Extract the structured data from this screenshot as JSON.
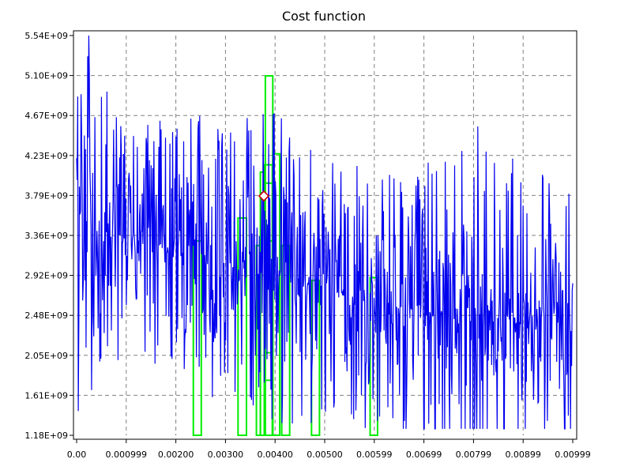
{
  "chart_data": {
    "type": "line",
    "title": "Cost function",
    "xlabel": "",
    "ylabel": "",
    "xlim": [
      0.0,
      0.00999
    ],
    "ylim": [
      1180000000.0,
      5540000000.0
    ],
    "grid": true,
    "y_tick_labels": [
      "1.18E+09",
      "1.61E+09",
      "2.05E+09",
      "2.48E+09",
      "2.92E+09",
      "3.36E+09",
      "3.79E+09",
      "4.23E+09",
      "4.67E+09",
      "5.10E+09",
      "5.54E+09"
    ],
    "x_tick_labels": [
      "0.00",
      "0.000999",
      "0.00200",
      "0.00300",
      "0.00400",
      "0.00500",
      "0.00599",
      "0.00699",
      "0.00799",
      "0.00899",
      "0.00999"
    ],
    "series": [
      {
        "color": "#0000ee",
        "description": "noisy cost trace, ~1000 samples, mean decreasing from ~3.4E+09 to ~2.5E+09",
        "x": [
          0.0,
          0.001,
          0.002,
          0.003,
          0.004,
          0.005,
          0.006,
          0.007,
          0.008,
          0.009,
          0.00999
        ],
        "y_mean": [
          3450000000.0,
          3350000000.0,
          3200000000.0,
          3100000000.0,
          3000000000.0,
          2800000000.0,
          2600000000.0,
          2500000000.0,
          2500000000.0,
          2450000000.0,
          2500000000.0
        ],
        "y_peak": [
          5540000000.0,
          4600000000.0,
          4700000000.0,
          4650000000.0,
          4700000000.0,
          4300000000.0,
          4100000000.0,
          4200000000.0,
          4600000000.0,
          4100000000.0,
          3900000000.0
        ]
      },
      {
        "color": "#00ee00",
        "description": "histogram-style green bars",
        "bars": [
          {
            "x0": 0.00235,
            "x1": 0.00251,
            "y": 3300000000.0
          },
          {
            "x0": 0.00325,
            "x1": 0.00342,
            "y": 3550000000.0
          },
          {
            "x0": 0.00362,
            "x1": 0.0037,
            "y": 3250000000.0
          },
          {
            "x0": 0.0037,
            "x1": 0.00378,
            "y": 4050000000.0
          },
          {
            "x0": 0.00378,
            "x1": 0.00394,
            "y": 4130000000.0
          },
          {
            "x0": 0.0038,
            "x1": 0.00395,
            "y": 5100000000.0
          },
          {
            "x0": 0.00395,
            "x1": 0.00409,
            "y": 4250000000.0
          },
          {
            "x0": 0.00413,
            "x1": 0.00429,
            "y": 3250000000.0
          },
          {
            "x0": 0.00473,
            "x1": 0.00489,
            "y": 2870000000.0
          },
          {
            "x0": 0.00591,
            "x1": 0.00606,
            "y": 2900000000.0
          }
        ]
      }
    ],
    "marker": {
      "x": 0.00377,
      "y": 3790000000.0,
      "shape": "diamond",
      "color": "#cc0000"
    }
  }
}
